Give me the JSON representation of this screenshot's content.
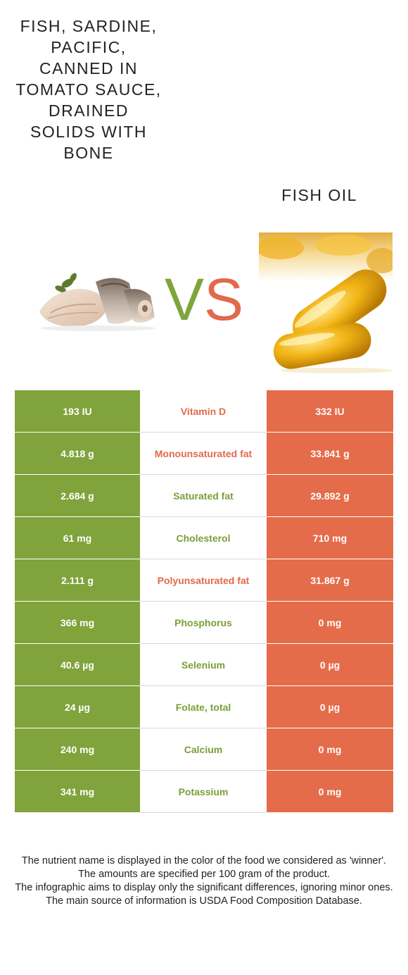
{
  "left_food": {
    "title": "Fish, sardine, Pacific, canned in tomato sauce, drained solids with bone",
    "image": "sardine-fish-pieces-image",
    "color": "#80a33c"
  },
  "right_food": {
    "title": "Fish oil",
    "image": "fish-oil-capsules-image",
    "color": "#e56c4b"
  },
  "vs": {
    "v": "V",
    "s": "S"
  },
  "rows": [
    {
      "left": "193 IU",
      "nutrient": "Vitamin D",
      "right": "332 IU",
      "winner": "right"
    },
    {
      "left": "4.818 g",
      "nutrient": "Monounsaturated fat",
      "right": "33.841 g",
      "winner": "right"
    },
    {
      "left": "2.684 g",
      "nutrient": "Saturated fat",
      "right": "29.892 g",
      "winner": "left"
    },
    {
      "left": "61 mg",
      "nutrient": "Cholesterol",
      "right": "710 mg",
      "winner": "left"
    },
    {
      "left": "2.111 g",
      "nutrient": "Polyunsaturated fat",
      "right": "31.867 g",
      "winner": "right"
    },
    {
      "left": "366 mg",
      "nutrient": "Phosphorus",
      "right": "0 mg",
      "winner": "left"
    },
    {
      "left": "40.6 µg",
      "nutrient": "Selenium",
      "right": "0 µg",
      "winner": "left"
    },
    {
      "left": "24 µg",
      "nutrient": "Folate, total",
      "right": "0 µg",
      "winner": "left"
    },
    {
      "left": "240 mg",
      "nutrient": "Calcium",
      "right": "0 mg",
      "winner": "left"
    },
    {
      "left": "341 mg",
      "nutrient": "Potassium",
      "right": "0 mg",
      "winner": "left"
    }
  ],
  "footer": {
    "line1": "The nutrient name is displayed in the color of the food we considered as 'winner'.",
    "line2": "The amounts are specified per 100 gram of the product.",
    "line3": "The infographic aims to display only the significant differences, ignoring minor ones.",
    "line4": "The main source of information is USDA Food Composition Database."
  }
}
